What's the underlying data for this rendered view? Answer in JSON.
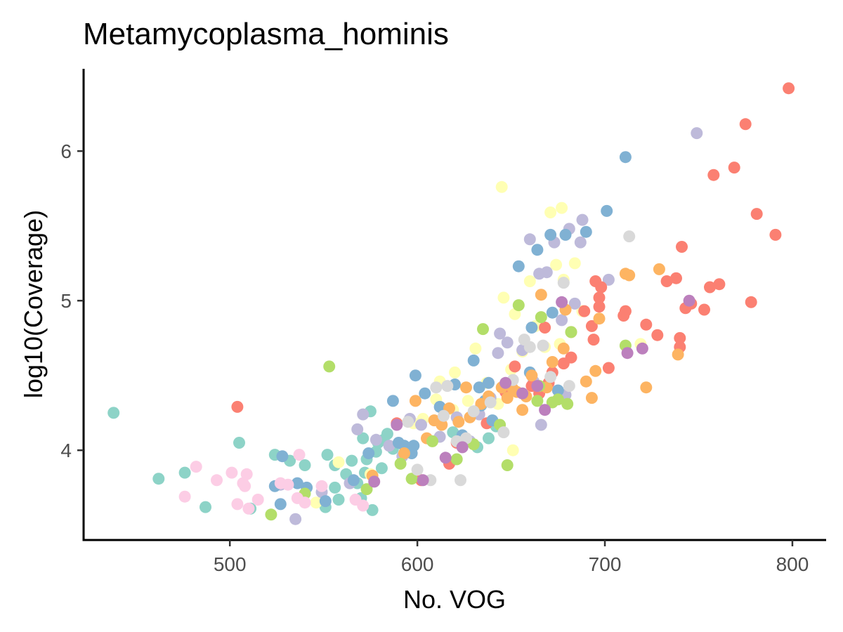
{
  "chart_data": {
    "type": "scatter",
    "title": "Metamycoplasma_hominis",
    "xlabel": "No. VOG",
    "ylabel": "log10(Coverage)",
    "xlim": [
      422,
      818
    ],
    "ylim": [
      3.4,
      6.55
    ],
    "xticks": [
      500,
      600,
      700,
      800
    ],
    "yticks": [
      4,
      5,
      6
    ],
    "grid": false,
    "legend": "none",
    "point_radius_hint": "medium",
    "palette": [
      "#8DD3C7",
      "#FFFFB3",
      "#BEBADA",
      "#FB8072",
      "#80B1D3",
      "#FDB462",
      "#B3DE69",
      "#FCCDE5",
      "#D9D9D9",
      "#BC80BD"
    ],
    "series": [
      {
        "color": "#8DD3C7",
        "points": [
          [
            438,
            4.25
          ],
          [
            462,
            3.81
          ],
          [
            476,
            3.85
          ],
          [
            487,
            3.62
          ],
          [
            505,
            4.05
          ],
          [
            511,
            3.61
          ],
          [
            524,
            3.97
          ],
          [
            532,
            3.93
          ],
          [
            540,
            3.9
          ],
          [
            551,
            3.62
          ],
          [
            552,
            3.97
          ],
          [
            556,
            3.75
          ],
          [
            556,
            3.9
          ],
          [
            558,
            3.67
          ],
          [
            562,
            3.84
          ],
          [
            565,
            3.93
          ],
          [
            568,
            3.78
          ],
          [
            570,
            3.68
          ],
          [
            571,
            4.08
          ],
          [
            572,
            3.85
          ],
          [
            573,
            3.94
          ],
          [
            575,
            4.26
          ],
          [
            576,
            3.6
          ],
          [
            578,
            3.99
          ],
          [
            579,
            4.05
          ],
          [
            581,
            3.88
          ],
          [
            582,
            4.07
          ],
          [
            584,
            4.11
          ],
          [
            587,
            4.01
          ],
          [
            619,
            4.12
          ],
          [
            625,
            4.05
          ],
          [
            632,
            4.02
          ],
          [
            638,
            4.08
          ],
          [
            642,
            4.16
          ]
        ]
      },
      {
        "color": "#FFFFB3",
        "points": [
          [
            546,
            3.65
          ],
          [
            558,
            3.92
          ],
          [
            575,
            3.84
          ],
          [
            598,
            4.18
          ],
          [
            603,
            4.21
          ],
          [
            610,
            4.34
          ],
          [
            612,
            4.46
          ],
          [
            619,
            4.27
          ],
          [
            620,
            4.52
          ],
          [
            627,
            4.33
          ],
          [
            631,
            4.68
          ],
          [
            637,
            4.45
          ],
          [
            643,
            4.31
          ],
          [
            645,
            5.76
          ],
          [
            646,
            5.02
          ],
          [
            650,
            4.54
          ],
          [
            652,
            4.91
          ],
          [
            656,
            4.66
          ],
          [
            660,
            5.13
          ],
          [
            663,
            4.83
          ],
          [
            668,
            4.69
          ],
          [
            671,
            5.59
          ],
          [
            674,
            5.24
          ],
          [
            676,
            4.71
          ],
          [
            677,
            5.62
          ],
          [
            678,
            5.14
          ],
          [
            684,
            5.25
          ],
          [
            688,
            4.93
          ],
          [
            719,
            4.71
          ],
          [
            651,
            4.0
          ]
        ]
      },
      {
        "color": "#BEBADA",
        "points": [
          [
            527,
            3.77
          ],
          [
            535,
            3.54
          ],
          [
            549,
            3.72
          ],
          [
            564,
            3.78
          ],
          [
            568,
            4.14
          ],
          [
            571,
            4.24
          ],
          [
            578,
            4.07
          ],
          [
            585,
            4.03
          ],
          [
            592,
            3.96
          ],
          [
            596,
            4.21
          ],
          [
            602,
            4.17
          ],
          [
            612,
            4.09
          ],
          [
            621,
            4.22
          ],
          [
            628,
            4.06
          ],
          [
            633,
            4.24
          ],
          [
            639,
            4.35
          ],
          [
            643,
            4.65
          ],
          [
            644,
            4.78
          ],
          [
            648,
            4.72
          ],
          [
            656,
            4.67
          ],
          [
            660,
            5.41
          ],
          [
            662,
            4.46
          ],
          [
            665,
            5.18
          ],
          [
            666,
            4.17
          ],
          [
            669,
            5.19
          ],
          [
            673,
            5.39
          ],
          [
            677,
            4.87
          ],
          [
            679,
            4.37
          ],
          [
            681,
            5.48
          ],
          [
            684,
            4.98
          ],
          [
            687,
            5.39
          ],
          [
            688,
            5.54
          ],
          [
            702,
            5.14
          ],
          [
            749,
            6.12
          ]
        ]
      },
      {
        "color": "#FB8072",
        "points": [
          [
            504,
            4.29
          ],
          [
            589,
            4.18
          ],
          [
            602,
            3.8
          ],
          [
            617,
            3.91
          ],
          [
            621,
            4.05
          ],
          [
            637,
            4.18
          ],
          [
            647,
            4.39
          ],
          [
            652,
            4.56
          ],
          [
            661,
            4.43
          ],
          [
            665,
            4.38
          ],
          [
            668,
            4.82
          ],
          [
            670,
            4.45
          ],
          [
            672,
            4.52
          ],
          [
            678,
            4.58
          ],
          [
            682,
            4.62
          ],
          [
            689,
            4.93
          ],
          [
            693,
            4.83
          ],
          [
            694,
            4.74
          ],
          [
            695,
            5.13
          ],
          [
            697,
            5.02
          ],
          [
            697,
            4.96
          ],
          [
            698,
            5.09
          ],
          [
            702,
            4.55
          ],
          [
            710,
            4.9
          ],
          [
            711,
            4.93
          ],
          [
            722,
            4.84
          ],
          [
            728,
            4.77
          ],
          [
            733,
            5.13
          ],
          [
            738,
            5.15
          ],
          [
            740,
            4.69
          ],
          [
            740,
            4.75
          ],
          [
            741,
            5.36
          ],
          [
            743,
            4.95
          ],
          [
            746,
            4.98
          ],
          [
            753,
            4.94
          ],
          [
            756,
            5.09
          ],
          [
            758,
            5.84
          ],
          [
            761,
            5.11
          ],
          [
            769,
            5.89
          ],
          [
            775,
            6.18
          ],
          [
            778,
            4.99
          ],
          [
            781,
            5.58
          ],
          [
            791,
            5.44
          ],
          [
            798,
            6.42
          ]
        ]
      },
      {
        "color": "#80B1D3",
        "points": [
          [
            524,
            3.76
          ],
          [
            527,
            3.64
          ],
          [
            528,
            3.96
          ],
          [
            536,
            3.78
          ],
          [
            541,
            3.75
          ],
          [
            551,
            3.66
          ],
          [
            566,
            3.8
          ],
          [
            574,
            3.98
          ],
          [
            587,
            4.33
          ],
          [
            590,
            4.05
          ],
          [
            593,
            4.03
          ],
          [
            597,
            3.98
          ],
          [
            598,
            4.03
          ],
          [
            599,
            4.5
          ],
          [
            604,
            4.38
          ],
          [
            612,
            4.29
          ],
          [
            620,
            4.44
          ],
          [
            624,
            4.1
          ],
          [
            624,
            4.03
          ],
          [
            630,
            4.6
          ],
          [
            633,
            4.42
          ],
          [
            634,
            4.3
          ],
          [
            636,
            4.33
          ],
          [
            638,
            4.45
          ],
          [
            640,
            4.2
          ],
          [
            654,
            5.23
          ],
          [
            660,
            4.52
          ],
          [
            661,
            4.82
          ],
          [
            664,
            5.34
          ],
          [
            671,
            5.44
          ],
          [
            672,
            4.92
          ],
          [
            675,
            4.4
          ],
          [
            679,
            5.44
          ],
          [
            690,
            5.46
          ],
          [
            701,
            5.6
          ],
          [
            711,
            5.96
          ]
        ]
      },
      {
        "color": "#FDB462",
        "points": [
          [
            576,
            3.83
          ],
          [
            593,
            3.98
          ],
          [
            599,
            4.33
          ],
          [
            605,
            4.08
          ],
          [
            609,
            4.2
          ],
          [
            613,
            4.17
          ],
          [
            617,
            4.28
          ],
          [
            622,
            4.19
          ],
          [
            626,
            4.42
          ],
          [
            628,
            4.22
          ],
          [
            634,
            4.31
          ],
          [
            638,
            4.36
          ],
          [
            645,
            4.42
          ],
          [
            648,
            4.35
          ],
          [
            651,
            4.41
          ],
          [
            653,
            4.39
          ],
          [
            656,
            4.27
          ],
          [
            658,
            4.36
          ],
          [
            661,
            4.5
          ],
          [
            666,
            5.04
          ],
          [
            669,
            4.42
          ],
          [
            672,
            4.59
          ],
          [
            678,
            4.68
          ],
          [
            679,
            4.94
          ],
          [
            682,
            4.79
          ],
          [
            690,
            4.46
          ],
          [
            693,
            4.35
          ],
          [
            695,
            4.53
          ],
          [
            697,
            4.88
          ],
          [
            711,
            5.18
          ],
          [
            713,
            5.17
          ],
          [
            722,
            4.42
          ],
          [
            729,
            5.21
          ],
          [
            739,
            4.64
          ]
        ]
      },
      {
        "color": "#B3DE69",
        "points": [
          [
            522,
            3.57
          ],
          [
            540,
            3.71
          ],
          [
            553,
            4.56
          ],
          [
            573,
            3.74
          ],
          [
            591,
            3.91
          ],
          [
            597,
            3.81
          ],
          [
            608,
            4.06
          ],
          [
            621,
            3.94
          ],
          [
            630,
            4.04
          ],
          [
            635,
            4.81
          ],
          [
            644,
            4.17
          ],
          [
            648,
            3.9
          ],
          [
            654,
            4.97
          ],
          [
            664,
            4.33
          ],
          [
            665,
            4.43
          ],
          [
            666,
            4.89
          ],
          [
            672,
            4.32
          ],
          [
            675,
            4.34
          ],
          [
            680,
            4.31
          ],
          [
            682,
            4.79
          ],
          [
            711,
            4.7
          ]
        ]
      },
      {
        "color": "#FCCDE5",
        "points": [
          [
            476,
            3.69
          ],
          [
            482,
            3.89
          ],
          [
            493,
            3.8
          ],
          [
            501,
            3.85
          ],
          [
            504,
            3.64
          ],
          [
            507,
            3.78
          ],
          [
            508,
            3.76
          ],
          [
            509,
            3.84
          ],
          [
            510,
            3.61
          ],
          [
            515,
            3.67
          ],
          [
            527,
            3.78
          ],
          [
            531,
            3.77
          ],
          [
            536,
            3.68
          ],
          [
            537,
            3.97
          ],
          [
            540,
            3.65
          ],
          [
            549,
            3.76
          ],
          [
            567,
            3.67
          ],
          [
            571,
            3.63
          ]
        ]
      },
      {
        "color": "#D9D9D9",
        "points": [
          [
            595,
            4.19
          ],
          [
            600,
            3.87
          ],
          [
            607,
            3.8
          ],
          [
            610,
            4.42
          ],
          [
            614,
            4.23
          ],
          [
            616,
            4.43
          ],
          [
            621,
            4.06
          ],
          [
            623,
            3.8
          ],
          [
            626,
            4.08
          ],
          [
            630,
            4.26
          ],
          [
            639,
            4.32
          ],
          [
            646,
            4.12
          ],
          [
            651,
            4.47
          ],
          [
            657,
            4.74
          ],
          [
            660,
            4.69
          ],
          [
            667,
            4.7
          ],
          [
            671,
            4.49
          ],
          [
            678,
            5.12
          ],
          [
            681,
            4.43
          ],
          [
            713,
            5.43
          ]
        ]
      },
      {
        "color": "#BC80BD",
        "points": [
          [
            577,
            3.79
          ],
          [
            589,
            4.17
          ],
          [
            603,
            3.8
          ],
          [
            615,
            3.95
          ],
          [
            624,
            4.02
          ],
          [
            647,
            4.45
          ],
          [
            656,
            4.38
          ],
          [
            664,
            4.43
          ],
          [
            668,
            4.27
          ],
          [
            677,
            4.99
          ],
          [
            712,
            4.65
          ],
          [
            720,
            4.68
          ],
          [
            745,
            5.0
          ]
        ]
      }
    ]
  }
}
